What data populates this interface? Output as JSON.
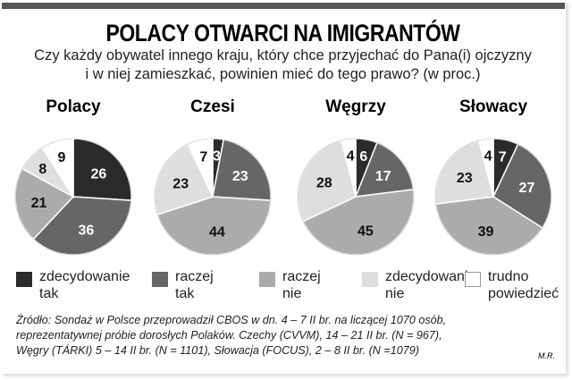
{
  "chart_data": {
    "type": "pie",
    "title": "POLACY OTWARCI NA IMIGRANTÓW",
    "subtitle": [
      "Czy każdy obywatel innego kraju, który chce przyjechać do Pana(i) ojczyzny",
      "i w niej zamieszkać, powinien mieć do tego prawo? (w proc.)"
    ],
    "categories": [
      "zdecydowanie tak",
      "raczej tak",
      "raczej nie",
      "zdecydowanie nie",
      "trudno powiedzieć"
    ],
    "legend": [
      [
        "zdecydowanie",
        "tak"
      ],
      [
        "raczej",
        "tak"
      ],
      [
        "raczej",
        "nie"
      ],
      [
        "zdecydowanie",
        "nie"
      ],
      [
        "trudno",
        "powiedzieć"
      ]
    ],
    "colors": [
      "#2b2b2b",
      "#666666",
      "#ababab",
      "#dedede",
      "#ffffff"
    ],
    "pies": [
      {
        "name": "Polacy",
        "values": [
          26,
          36,
          21,
          8,
          9
        ]
      },
      {
        "name": "Czesi",
        "values": [
          3,
          23,
          44,
          23,
          7
        ]
      },
      {
        "name": "Węgrzy",
        "values": [
          6,
          17,
          45,
          28,
          4
        ]
      },
      {
        "name": "Słowacy",
        "values": [
          7,
          27,
          39,
          23,
          4
        ]
      }
    ],
    "legend_position": "bottom"
  },
  "source": [
    "Źródło: Sondaż w Polsce przeprowadził CBOS w dn. 4 – 7 II br. na liczącej 1070 osób,",
    "reprezentatywnej próbie dorosłych Polaków. Czechy (CVVM), 14 – 21 II br. (N = 967),",
    "Węgry (TÁRKI) 5 – 14 II br. (N = 1101), Słowacja (FOCUS), 2 – 8 II br. (N =1079)"
  ],
  "author": "M.R."
}
